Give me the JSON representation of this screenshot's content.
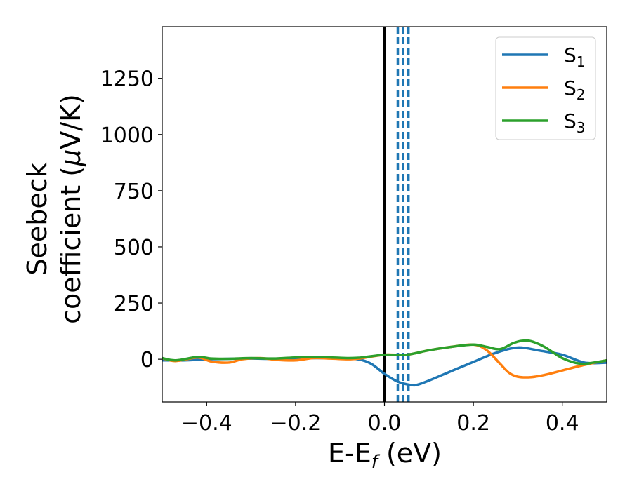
{
  "chart_data": {
    "type": "line",
    "title": "",
    "xlabel": "E-E",
    "xlabel_sub": "f",
    "xlabel_unit": " (eV)",
    "ylabel_line1": "Seebeck",
    "ylabel_line2_text": "coefficient  (",
    "ylabel_line2_mu": "μ",
    "ylabel_line2_end": "V/K)",
    "xlim": [
      -0.5,
      0.5
    ],
    "ylim": [
      -190,
      1480
    ],
    "x_ticks": [
      -0.4,
      -0.2,
      0.0,
      0.2,
      0.4
    ],
    "x_tick_labels": [
      "−0.4",
      "−0.2",
      "0.0",
      "0.2",
      "0.4"
    ],
    "y_ticks": [
      0,
      250,
      500,
      750,
      1000,
      1250
    ],
    "y_tick_labels": [
      "0",
      "250",
      "500",
      "750",
      "1000",
      "1250"
    ],
    "grid": false,
    "legend_position": "top-right",
    "vertical_lines": [
      {
        "x": 0.0,
        "color": "#000000",
        "style": "solid"
      },
      {
        "x": 0.03,
        "color": "#1f77b4",
        "style": "dashed"
      },
      {
        "x": 0.042,
        "color": "#1f77b4",
        "style": "dashed"
      },
      {
        "x": 0.054,
        "color": "#1f77b4",
        "style": "dashed"
      }
    ],
    "series": [
      {
        "name": "S",
        "sub": "1",
        "color": "#1f77b4",
        "x": [
          -0.5,
          -0.45,
          -0.4,
          -0.35,
          -0.3,
          -0.25,
          -0.2,
          -0.15,
          -0.1,
          -0.06,
          -0.03,
          0.0,
          0.03,
          0.06,
          0.075,
          0.1,
          0.13,
          0.16,
          0.2,
          0.25,
          0.3,
          0.35,
          0.4,
          0.45,
          0.5
        ],
        "y": [
          -5,
          -5,
          0,
          2,
          3,
          2,
          4,
          5,
          3,
          0,
          -20,
          -65,
          -100,
          -115,
          -113,
          -95,
          -70,
          -45,
          -12,
          28,
          52,
          38,
          20,
          -15,
          -15
        ]
      },
      {
        "name": "S",
        "sub": "2",
        "color": "#ff7f0e",
        "x": [
          -0.5,
          -0.47,
          -0.42,
          -0.39,
          -0.35,
          -0.32,
          -0.28,
          -0.24,
          -0.2,
          -0.16,
          -0.12,
          -0.08,
          -0.05,
          0.0,
          0.05,
          0.1,
          0.15,
          0.2,
          0.23,
          0.26,
          0.28,
          0.3,
          0.33,
          0.36,
          0.4,
          0.45,
          0.5
        ],
        "y": [
          5,
          -8,
          8,
          -10,
          -15,
          0,
          5,
          -3,
          -5,
          5,
          3,
          0,
          5,
          20,
          20,
          40,
          55,
          65,
          40,
          -20,
          -60,
          -78,
          -80,
          -70,
          -50,
          -25,
          -5
        ]
      },
      {
        "name": "S",
        "sub": "3",
        "color": "#2ca02c",
        "x": [
          -0.5,
          -0.47,
          -0.42,
          -0.39,
          -0.35,
          -0.3,
          -0.25,
          -0.2,
          -0.16,
          -0.12,
          -0.08,
          -0.05,
          0.0,
          0.05,
          0.1,
          0.15,
          0.2,
          0.23,
          0.26,
          0.29,
          0.31,
          0.33,
          0.36,
          0.4,
          0.44,
          0.47,
          0.5
        ],
        "y": [
          5,
          -5,
          10,
          3,
          2,
          5,
          3,
          8,
          10,
          8,
          5,
          8,
          20,
          20,
          40,
          55,
          65,
          55,
          45,
          72,
          82,
          80,
          55,
          5,
          -20,
          -15,
          -5
        ]
      }
    ]
  }
}
